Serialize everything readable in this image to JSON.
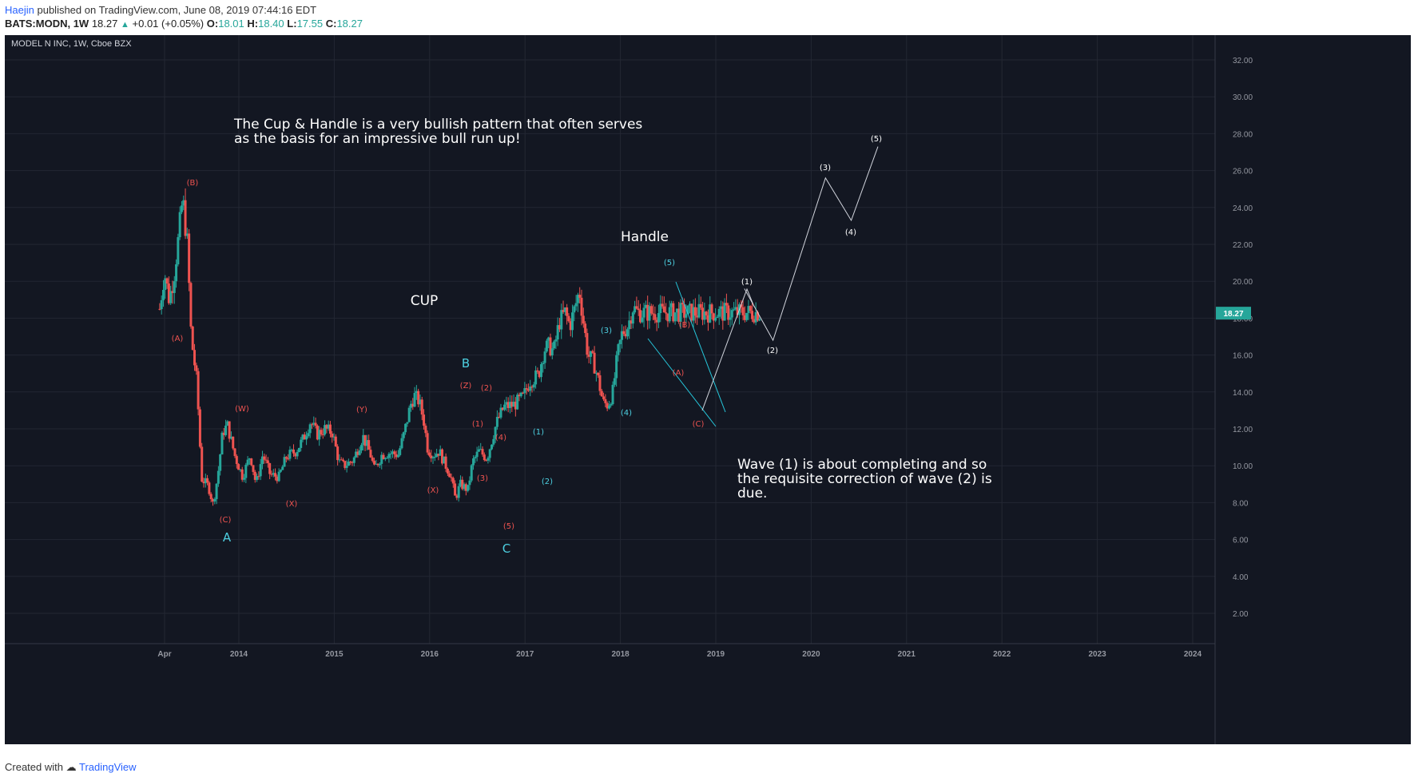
{
  "header": {
    "author": "Haejin",
    "published_text": "published on TradingView.com, June 08, 2019 07:44:16 EDT",
    "symbol": "BATS:MODN, 1W",
    "last": "18.27",
    "change": "+0.01 (+0.05%)",
    "o_label": "O:",
    "o_val": "18.01",
    "h_label": "H:",
    "h_val": "18.40",
    "l_label": "L:",
    "l_val": "17.55",
    "c_label": "C:",
    "c_val": "18.27"
  },
  "footer": {
    "created": "Created with",
    "brand": "TradingView"
  },
  "chart_data": {
    "type": "candlestick",
    "title": "MODEL N INC, 1W, Cboe BZX",
    "ylim": [
      0,
      33
    ],
    "y_ticks": [
      "2.00",
      "4.00",
      "6.00",
      "8.00",
      "10.00",
      "12.00",
      "14.00",
      "16.00",
      "18.00",
      "20.00",
      "22.00",
      "24.00",
      "26.00",
      "28.00",
      "30.00",
      "32.00"
    ],
    "x_ticks": [
      "Apr",
      "2014",
      "2015",
      "2016",
      "2017",
      "2018",
      "2019",
      "2020",
      "2021",
      "2022",
      "2023",
      "2024"
    ],
    "last_price_label": "18.27",
    "colors": {
      "up": "#26a69a",
      "down": "#ef5350",
      "background": "#131722",
      "cyan": "#4dd0e1",
      "white": "#ffffff",
      "red_label": "#ef5350"
    },
    "price_path": [
      [
        2013.17,
        18.5
      ],
      [
        2013.22,
        20.5
      ],
      [
        2013.27,
        19.0
      ],
      [
        2013.32,
        20.3
      ],
      [
        2013.37,
        22.5
      ],
      [
        2013.41,
        24.5
      ],
      [
        2013.46,
        22.0
      ],
      [
        2013.5,
        17.0
      ],
      [
        2013.56,
        14.5
      ],
      [
        2013.61,
        9.3
      ],
      [
        2013.68,
        8.9
      ],
      [
        2013.73,
        7.9
      ],
      [
        2013.78,
        9.5
      ],
      [
        2013.83,
        11.8
      ],
      [
        2013.88,
        12.2
      ],
      [
        2013.96,
        10.5
      ],
      [
        2014.04,
        9.4
      ],
      [
        2014.12,
        10.6
      ],
      [
        2014.18,
        9.0
      ],
      [
        2014.25,
        10.6
      ],
      [
        2014.33,
        9.5
      ],
      [
        2014.42,
        9.4
      ],
      [
        2014.5,
        10.5
      ],
      [
        2014.6,
        10.8
      ],
      [
        2014.68,
        11.5
      ],
      [
        2014.75,
        12.4
      ],
      [
        2014.82,
        11.7
      ],
      [
        2014.9,
        12.0
      ],
      [
        2014.98,
        11.8
      ],
      [
        2015.05,
        10.2
      ],
      [
        2015.1,
        10.0
      ],
      [
        2015.2,
        10.3
      ],
      [
        2015.3,
        11.6
      ],
      [
        2015.38,
        10.6
      ],
      [
        2015.42,
        9.8
      ],
      [
        2015.5,
        10.6
      ],
      [
        2015.58,
        10.7
      ],
      [
        2015.67,
        10.6
      ],
      [
        2015.73,
        11.7
      ],
      [
        2015.8,
        13.3
      ],
      [
        2015.84,
        13.8
      ],
      [
        2015.89,
        13.5
      ],
      [
        2015.94,
        12.4
      ],
      [
        2015.98,
        10.9
      ],
      [
        2016.04,
        10.6
      ],
      [
        2016.1,
        10.8
      ],
      [
        2016.15,
        10.2
      ],
      [
        2016.22,
        9.5
      ],
      [
        2016.27,
        8.2
      ],
      [
        2016.32,
        9.0
      ],
      [
        2016.4,
        8.7
      ],
      [
        2016.45,
        10.2
      ],
      [
        2016.52,
        10.8
      ],
      [
        2016.6,
        10.4
      ],
      [
        2016.7,
        12.3
      ],
      [
        2016.78,
        13.2
      ],
      [
        2016.88,
        13.3
      ],
      [
        2016.98,
        13.7
      ],
      [
        2017.05,
        14.6
      ],
      [
        2017.14,
        14.9
      ],
      [
        2017.2,
        16.3
      ],
      [
        2017.25,
        16.5
      ],
      [
        2017.3,
        16.2
      ],
      [
        2017.36,
        17.8
      ],
      [
        2017.42,
        18.3
      ],
      [
        2017.47,
        17.6
      ],
      [
        2017.52,
        18.5
      ],
      [
        2017.57,
        19.5
      ],
      [
        2017.62,
        17.5
      ],
      [
        2017.66,
        16.0
      ],
      [
        2017.72,
        15.6
      ],
      [
        2017.77,
        14.6
      ],
      [
        2017.82,
        13.4
      ],
      [
        2017.87,
        13.3
      ],
      [
        2017.92,
        14.0
      ],
      [
        2017.97,
        16.0
      ],
      [
        2018.02,
        17.2
      ],
      [
        2018.08,
        17.6
      ],
      [
        2018.13,
        18.6
      ],
      [
        2018.18,
        18.3
      ]
    ],
    "annotations": {
      "texts": {
        "cup_handle": "The Cup & Handle is a very bullish pattern that often serves",
        "cup_handle_2": "as the basis for an impressive bull run up!",
        "cup": "CUP",
        "handle": "Handle",
        "wave1": "Wave (1) is about completing and so",
        "wave2": "the requisite correction of wave (2) is",
        "wave3": "due."
      },
      "red_labels": [
        "(A)",
        "(B)",
        "(C)",
        "(W)",
        "(X)",
        "(Y)",
        "(X)",
        "(Z)",
        "(1)",
        "(2)",
        "(3)",
        "(4)",
        "(5)",
        "(B)",
        "(A)",
        "(C)"
      ],
      "cyan_labels": [
        "A",
        "B",
        "C",
        "(1)",
        "(2)",
        "(3)",
        "(4)",
        "(5)"
      ],
      "white_labels": [
        "(1)",
        "(2)",
        "(3)",
        "(4)",
        "(5)"
      ],
      "projection": [
        [
          2019.3,
          19.6
        ],
        [
          2019.6,
          16.8
        ],
        [
          2020.15,
          25.6
        ],
        [
          2020.42,
          23.3
        ],
        [
          2020.7,
          27.3
        ]
      ]
    }
  }
}
